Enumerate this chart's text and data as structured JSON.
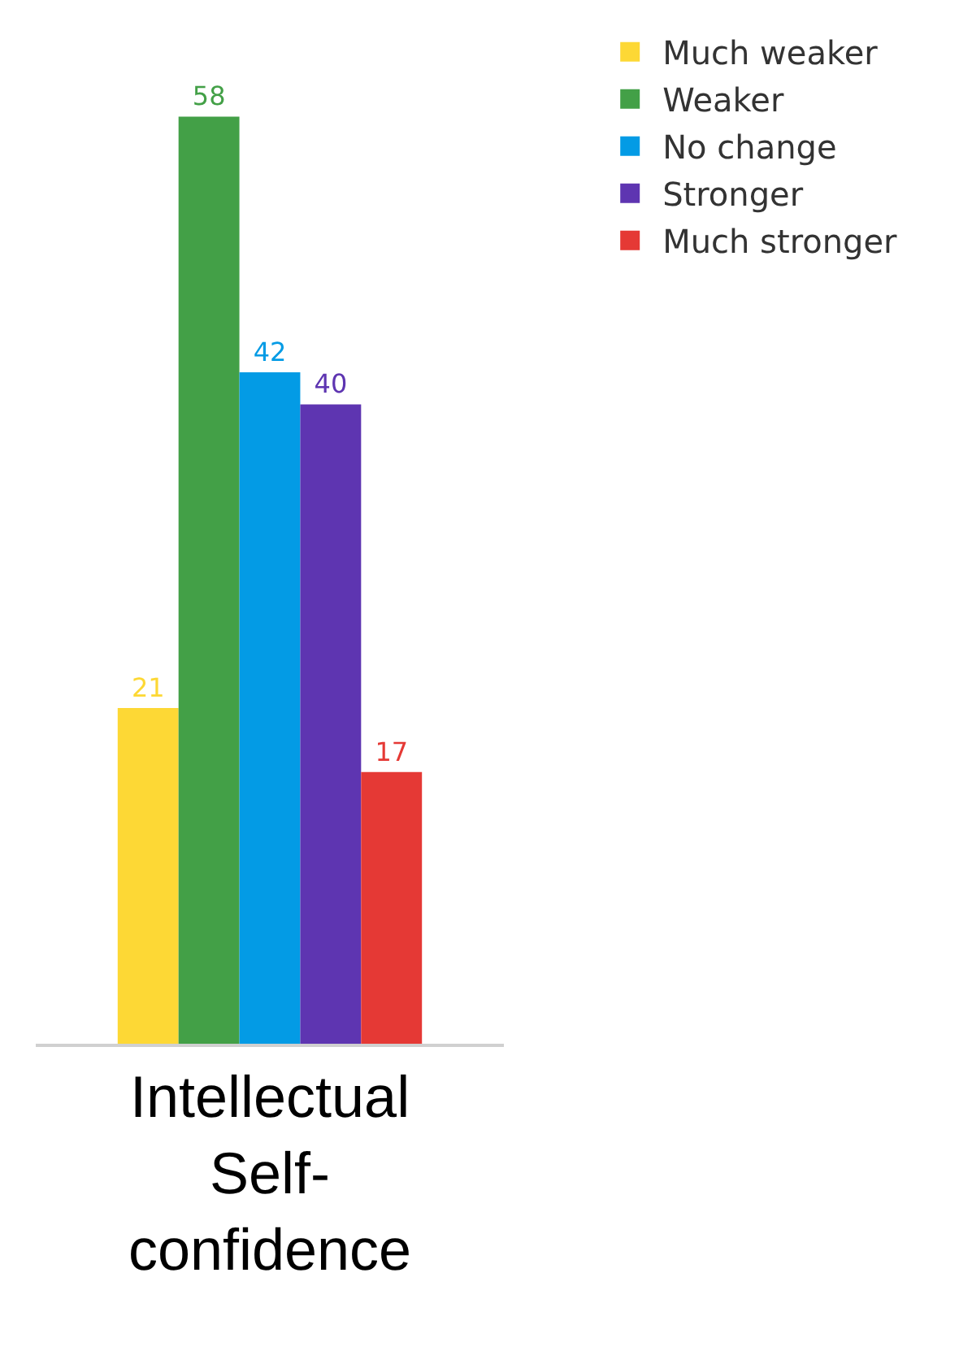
{
  "chart_data": {
    "type": "bar",
    "categories": [
      "Intellectual Self-confidence"
    ],
    "series": [
      {
        "name": "Much weaker",
        "color": "#fdd835",
        "values": [
          21
        ]
      },
      {
        "name": "Weaker",
        "color": "#43a047",
        "values": [
          58
        ]
      },
      {
        "name": "No change",
        "color": "#039be5",
        "values": [
          42
        ]
      },
      {
        "name": "Stronger",
        "color": "#5e35b1",
        "values": [
          40
        ]
      },
      {
        "name": "Much stronger",
        "color": "#e53935",
        "values": [
          17
        ]
      }
    ],
    "data_labels": true,
    "legend": "top right",
    "tick_labels": "x"
  }
}
